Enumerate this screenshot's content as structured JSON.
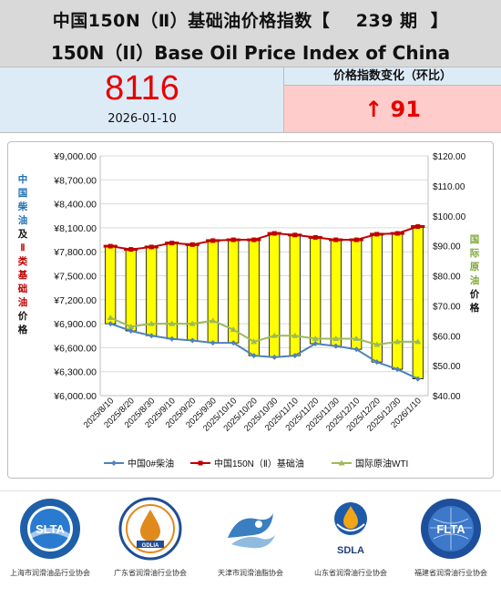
{
  "header": {
    "title_cn": "中国150N（Ⅱ）基础油价格指数【    239 期  】",
    "title_en": "150N（II）Base Oil Price Index of China"
  },
  "index": {
    "value": "8116",
    "date": "2026-01-10"
  },
  "change": {
    "label": "价格指数变化（环比）",
    "value": "↑ 91"
  },
  "colors": {
    "header_bg": "#d9d9d9",
    "index_bg": "#ddebf7",
    "change_bg": "#ffcccc",
    "accent_red": "#e60000",
    "bar_fill": "#ffff00",
    "diesel_line": "#4f81bd",
    "base_oil_line": "#c00000",
    "wti_line": "#9bbb59"
  },
  "chart_data": {
    "type": "bar",
    "categories": [
      "2025/8/10",
      "2025/8/20",
      "2025/8/30",
      "2025/9/10",
      "2025/9/20",
      "2025/9/30",
      "2025/10/10",
      "2025/10/20",
      "2025/10/30",
      "2025/11/10",
      "2025/11/20",
      "2025/11/30",
      "2025/12/10",
      "2025/12/20",
      "2025/12/30",
      "2026/1/10"
    ],
    "left_axis": {
      "ylim": [
        6000,
        9000
      ],
      "ticks": [
        "¥9,000.00",
        "¥8,700.00",
        "¥8,400.00",
        "¥8,100.00",
        "¥7,800.00",
        "¥7,500.00",
        "¥7,200.00",
        "¥6,900.00",
        "¥6,600.00",
        "¥6,300.00",
        "¥6,000.00"
      ],
      "label_parts": [
        {
          "text": "中国柴油",
          "color": "#1f6fb5"
        },
        {
          "text": "及",
          "color": "#111111"
        },
        {
          "text": "Ⅱ类基础油",
          "color": "#c00000"
        },
        {
          "text": "价格",
          "color": "#111111"
        }
      ]
    },
    "right_axis": {
      "ylim": [
        40,
        120
      ],
      "ticks": [
        "$120.00",
        "$110.00",
        "$100.00",
        "$90.00",
        "$80.00",
        "$70.00",
        "$60.00",
        "$50.00",
        "$40.00"
      ],
      "label_parts": [
        {
          "text": "国际原油",
          "color": "#7fa83a"
        },
        {
          "text": "价格",
          "color": "#111111"
        }
      ]
    },
    "series": [
      {
        "name": "中国0#柴油",
        "axis": "left",
        "kind": "line",
        "values": [
          6900,
          6810,
          6750,
          6710,
          6690,
          6660,
          6660,
          6500,
          6480,
          6500,
          6650,
          6620,
          6580,
          6420,
          6330,
          6210
        ]
      },
      {
        "name": "中国150N（Ⅱ）基础油",
        "axis": "left",
        "kind": "bar+line",
        "values": [
          7870,
          7830,
          7860,
          7910,
          7890,
          7940,
          7950,
          7950,
          8030,
          8010,
          7980,
          7950,
          7950,
          8020,
          8030,
          8116
        ]
      },
      {
        "name": "国际原油WTI",
        "axis": "right",
        "kind": "line",
        "values": [
          66,
          63,
          64,
          64,
          64,
          65,
          62,
          58,
          60,
          60,
          59,
          59,
          59,
          57,
          58,
          58
        ]
      }
    ],
    "legend_position": "bottom",
    "grid": true
  },
  "logos": [
    {
      "name": "SLTA",
      "caption": "上海市润滑油品行业协会",
      "icon": "slta-logo-icon"
    },
    {
      "name": "GDLIA",
      "caption": "广东省润滑油行业协会",
      "icon": "gdlia-logo-icon"
    },
    {
      "name": "",
      "caption": "天津市润滑油脂协会",
      "icon": "tianjin-logo-icon"
    },
    {
      "name": "SDLA",
      "caption": "山东省润滑油行业协会",
      "icon": "sdla-logo-icon"
    },
    {
      "name": "FLTA",
      "caption": "福建省润滑油行业协会",
      "icon": "flta-logo-icon"
    }
  ]
}
